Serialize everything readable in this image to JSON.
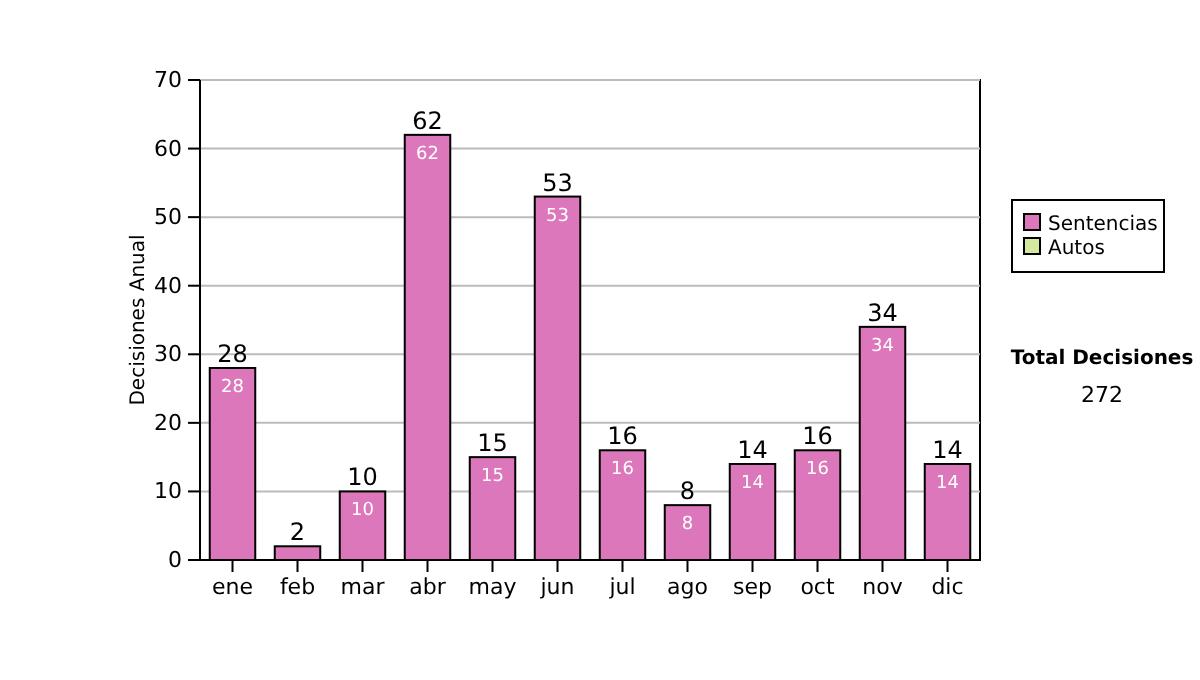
{
  "chart_data": {
    "type": "bar",
    "ylabel": "Decisiones Anual",
    "categories": [
      "ene",
      "feb",
      "mar",
      "abr",
      "may",
      "jun",
      "jul",
      "ago",
      "sep",
      "oct",
      "nov",
      "dic"
    ],
    "stacked": true,
    "series": [
      {
        "name": "Sentencias",
        "color": "#dd77bb",
        "values": [
          28,
          2,
          10,
          62,
          15,
          53,
          16,
          8,
          14,
          16,
          34,
          14
        ],
        "value_labels": [
          "28",
          null,
          "10",
          "62",
          "15",
          "53",
          "16",
          "8",
          "14",
          "16",
          "34",
          "14"
        ]
      },
      {
        "name": "Autos",
        "color": "#d4e8a0",
        "values": [
          null,
          null,
          null,
          null,
          null,
          null,
          null,
          null,
          null,
          null,
          null,
          null
        ]
      }
    ],
    "totals": [
      "28",
      "2",
      "10",
      "62",
      "15",
      "53",
      "16",
      "8",
      "14",
      "16",
      "34",
      "14"
    ],
    "ylim": [
      0,
      70
    ],
    "yticks": [
      0,
      10,
      20,
      30,
      40,
      50,
      60,
      70
    ],
    "grid": "y",
    "legend": "right",
    "annotations": [
      "Total Decisiones",
      "272"
    ]
  }
}
